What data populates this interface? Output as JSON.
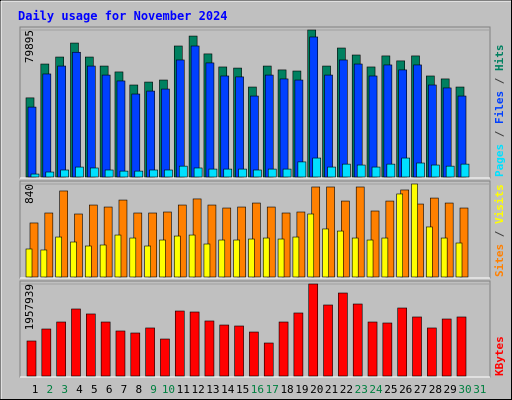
{
  "chart_data": [
    {
      "type": "bar",
      "title": "Daily usage for November 2024",
      "categories": [
        "1",
        "2",
        "3",
        "4",
        "5",
        "6",
        "7",
        "8",
        "9",
        "10",
        "11",
        "12",
        "13",
        "14",
        "15",
        "16",
        "17",
        "18",
        "19",
        "20",
        "21",
        "22",
        "23",
        "24",
        "25",
        "26",
        "27",
        "28",
        "29",
        "30",
        "31"
      ],
      "category_colors": [
        "#000000",
        "#008040",
        "#008040",
        "#000000",
        "#000000",
        "#000000",
        "#000000",
        "#000000",
        "#008040",
        "#008040",
        "#000000",
        "#000000",
        "#000000",
        "#000000",
        "#000000",
        "#008040",
        "#008040",
        "#000000",
        "#000000",
        "#000000",
        "#000000",
        "#000000",
        "#008040",
        "#008040",
        "#000000",
        "#000000",
        "#000000",
        "#000000",
        "#000000",
        "#008040",
        "#008040"
      ],
      "legend_separator": "/",
      "ylim": [
        0,
        79895
      ],
      "yticks": [
        79895
      ],
      "series": [
        {
          "name": "Pages",
          "color": "#00e0ff",
          "values": [
            1600,
            2700,
            3800,
            5400,
            4900,
            3800,
            3200,
            3200,
            3800,
            3800,
            5900,
            4900,
            4300,
            4300,
            4300,
            3800,
            4300,
            4300,
            8200,
            10300,
            5400,
            7000,
            6500,
            5400,
            7000,
            10300,
            7600,
            6500,
            5900,
            7000,
            null
          ]
        },
        {
          "name": "Files",
          "color": "#0040ff",
          "values": [
            38000,
            56000,
            60300,
            67800,
            60300,
            55400,
            52200,
            45100,
            46700,
            47800,
            63600,
            71200,
            62000,
            54900,
            54400,
            44000,
            55400,
            53300,
            52700,
            76100,
            55400,
            63600,
            61400,
            54900,
            60900,
            58200,
            60900,
            50000,
            48400,
            44000,
            null
          ]
        },
        {
          "name": "Hits",
          "color": "#008060",
          "values": [
            43000,
            61400,
            65200,
            72800,
            65200,
            60300,
            57100,
            50000,
            51600,
            52700,
            71200,
            76600,
            66900,
            59800,
            59200,
            48900,
            60300,
            58200,
            57600,
            79895,
            60300,
            70100,
            66300,
            59800,
            65800,
            63100,
            65800,
            54900,
            53300,
            48900,
            null
          ]
        }
      ]
    },
    {
      "type": "bar",
      "legend_separator": "/",
      "ylim": [
        0,
        840
      ],
      "yticks": [
        840
      ],
      "series": [
        {
          "name": "Sites",
          "color": "#ff8000",
          "values": [
            488,
            578,
            777,
            569,
            650,
            632,
            695,
            578,
            578,
            587,
            650,
            705,
            650,
            623,
            632,
            668,
            632,
            578,
            587,
            813,
            813,
            686,
            813,
            596,
            686,
            786,
            659,
            713,
            668,
            623,
            null
          ]
        },
        {
          "name": "Visits",
          "color": "#ffff00",
          "values": [
            253,
            244,
            361,
            316,
            280,
            289,
            379,
            352,
            280,
            334,
            370,
            379,
            298,
            334,
            334,
            343,
            352,
            343,
            361,
            569,
            434,
            415,
            352,
            334,
            352,
            750,
            840,
            452,
            352,
            307,
            null
          ]
        }
      ]
    },
    {
      "type": "bar",
      "ylim": [
        0,
        1957939
      ],
      "yticks": [
        1957939
      ],
      "series": [
        {
          "name": "KBytes",
          "color": "#ff0000",
          "values": [
            745000,
            1000000,
            1149000,
            1426000,
            1320000,
            1149000,
            958000,
            915000,
            1022000,
            787000,
            1383000,
            1362000,
            1171000,
            1085000,
            1064000,
            936000,
            702000,
            1149000,
            1341000,
            1957939,
            1511000,
            1766000,
            1532000,
            1149000,
            1128000,
            1447000,
            1256000,
            1022000,
            1213000,
            1256000,
            null
          ]
        }
      ]
    }
  ]
}
